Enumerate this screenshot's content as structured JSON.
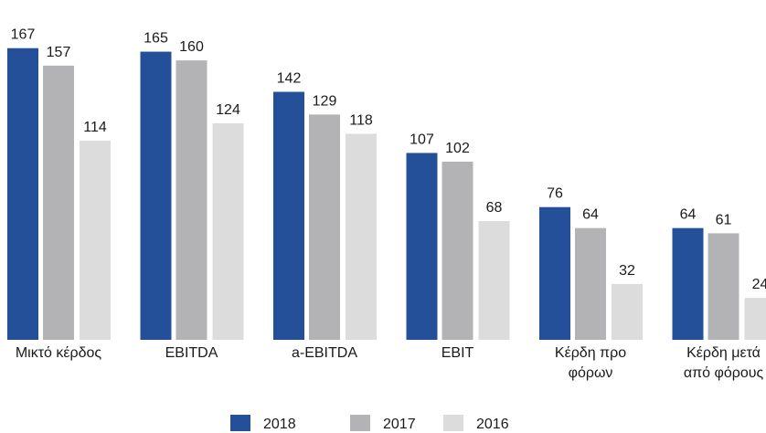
{
  "chart_data": {
    "type": "bar",
    "categories": [
      [
        "Μικτό κέρδος"
      ],
      [
        "EBITDA"
      ],
      [
        "a-EBITDA"
      ],
      [
        "EBIT"
      ],
      [
        "Κέρδη προ",
        "φόρων"
      ],
      [
        "Κέρδη μετά",
        "από φόρους"
      ]
    ],
    "series": [
      {
        "name": "2018",
        "color": "#24509a",
        "values": [
          167,
          165,
          142,
          107,
          76,
          64
        ]
      },
      {
        "name": "2017",
        "color": "#b3b3b5",
        "values": [
          157,
          160,
          129,
          102,
          64,
          61
        ]
      },
      {
        "name": "2016",
        "color": "#dcdcdd",
        "values": [
          114,
          124,
          118,
          68,
          32,
          24
        ]
      }
    ],
    "ylim": [
      0,
      170
    ],
    "legend": "bottom"
  }
}
